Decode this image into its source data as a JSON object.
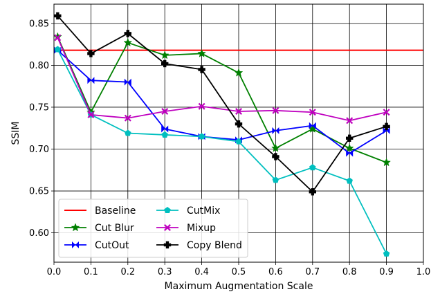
{
  "chart_data": {
    "type": "line",
    "title": "",
    "xlabel": "Maximum Augmentation Scale",
    "ylabel": "SSIM",
    "xlim": [
      0.0,
      1.0
    ],
    "ylim": [
      0.565,
      0.873
    ],
    "xticks": [
      "0.0",
      "0.1",
      "0.2",
      "0.3",
      "0.4",
      "0.5",
      "0.6",
      "0.7",
      "0.8",
      "0.9",
      "1.0"
    ],
    "yticks": [
      "0.60",
      "0.65",
      "0.70",
      "0.75",
      "0.80",
      "0.85"
    ],
    "grid": true,
    "legend_position": "lower-left",
    "baseline": {
      "name": "Baseline",
      "value": 0.818,
      "color": "#ff0000"
    },
    "series": [
      {
        "name": "Cut Blur",
        "color": "#008000",
        "marker": "star",
        "x": [
          0.01,
          0.1,
          0.2,
          0.3,
          0.4,
          0.5,
          0.6,
          0.7,
          0.8,
          0.9
        ],
        "values": [
          0.834,
          0.744,
          0.827,
          0.812,
          0.814,
          0.791,
          0.701,
          0.724,
          0.701,
          0.684
        ]
      },
      {
        "name": "CutOut",
        "color": "#0000ff",
        "marker": "bowtie",
        "x": [
          0.01,
          0.1,
          0.2,
          0.3,
          0.4,
          0.5,
          0.6,
          0.7,
          0.8,
          0.9
        ],
        "values": [
          0.818,
          0.782,
          0.78,
          0.724,
          0.715,
          0.711,
          0.722,
          0.728,
          0.695,
          0.722
        ]
      },
      {
        "name": "CutMix",
        "color": "#00bfbf",
        "marker": "pentagon",
        "x": [
          0.01,
          0.1,
          0.2,
          0.3,
          0.4,
          0.5,
          0.6,
          0.7,
          0.8,
          0.9
        ],
        "values": [
          0.819,
          0.741,
          0.719,
          0.717,
          0.715,
          0.709,
          0.663,
          0.678,
          0.662,
          0.575
        ]
      },
      {
        "name": "Mixup",
        "color": "#bf00bf",
        "marker": "x",
        "x": [
          0.01,
          0.1,
          0.2,
          0.3,
          0.4,
          0.5,
          0.6,
          0.7,
          0.8,
          0.9
        ],
        "values": [
          0.833,
          0.741,
          0.737,
          0.745,
          0.751,
          0.745,
          0.746,
          0.744,
          0.734,
          0.744
        ]
      },
      {
        "name": "Copy Blend",
        "color": "#000000",
        "marker": "plus",
        "x": [
          0.01,
          0.1,
          0.2,
          0.3,
          0.4,
          0.5,
          0.6,
          0.7,
          0.8,
          0.9
        ],
        "values": [
          0.859,
          0.814,
          0.838,
          0.802,
          0.795,
          0.73,
          0.691,
          0.649,
          0.713,
          0.727
        ]
      }
    ]
  }
}
